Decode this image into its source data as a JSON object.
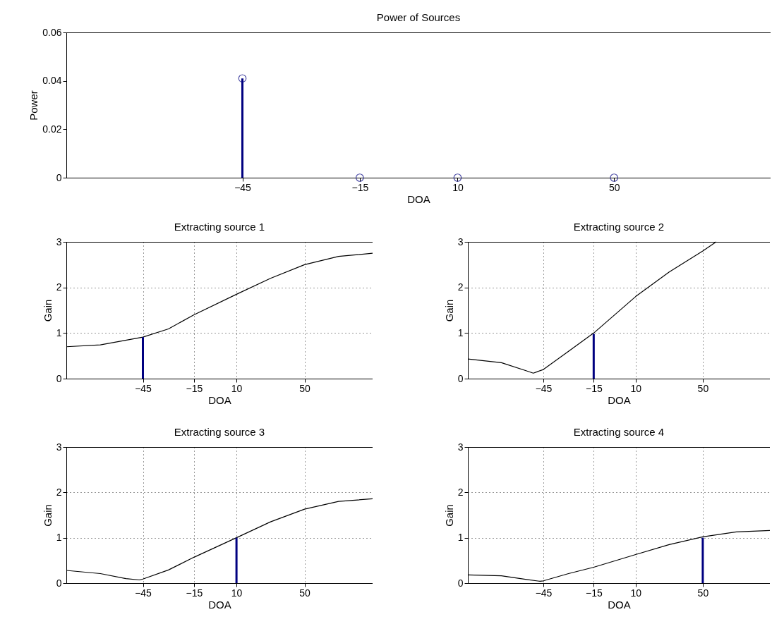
{
  "chart_data": [
    {
      "type": "lollipop",
      "title": "Power of Sources",
      "xlabel": "DOA",
      "ylabel": "Power",
      "x": [
        -45,
        -15,
        10,
        50
      ],
      "series": [
        {
          "color": "#000080",
          "values": [
            0.041,
            0,
            0,
            0
          ]
        }
      ],
      "marker": "circle",
      "xlim": [
        -90,
        90
      ],
      "xticks": [
        -45,
        -15,
        10,
        50
      ],
      "ylim": [
        0,
        0.06
      ],
      "yticks": [
        0,
        0.02,
        0.04,
        0.06
      ]
    },
    {
      "type": "line",
      "title": "Extracting source 1",
      "xlabel": "DOA",
      "ylabel": "Gain",
      "series": [
        {
          "color": "#000000",
          "x": [
            -90,
            -70,
            -45,
            -30,
            -15,
            10,
            30,
            50,
            70,
            90
          ],
          "values": [
            0.7,
            0.74,
            0.91,
            1.09,
            1.4,
            1.85,
            2.2,
            2.5,
            2.68,
            2.75
          ]
        },
        {
          "type": "bar",
          "color": "#000080",
          "x": [
            -45
          ],
          "values": [
            0.91
          ]
        }
      ],
      "grid": true,
      "xlim": [
        -90,
        90
      ],
      "xticks": [
        -45,
        -15,
        10,
        50
      ],
      "ylim": [
        0,
        3
      ],
      "yticks": [
        0,
        1,
        2,
        3
      ]
    },
    {
      "type": "line",
      "title": "Extracting source 2",
      "xlabel": "DOA",
      "ylabel": "Gain",
      "series": [
        {
          "color": "#000000",
          "x": [
            -90,
            -70,
            -55,
            -51,
            -45,
            -30,
            -15,
            10,
            30,
            50,
            58
          ],
          "values": [
            0.43,
            0.35,
            0.17,
            0.12,
            0.2,
            0.6,
            1.0,
            1.8,
            2.34,
            2.8,
            3.0
          ]
        },
        {
          "type": "bar",
          "color": "#000080",
          "x": [
            -15
          ],
          "values": [
            0.98
          ]
        }
      ],
      "grid": true,
      "xlim": [
        -90,
        90
      ],
      "xticks": [
        -45,
        -15,
        10,
        50
      ],
      "ylim": [
        0,
        3
      ],
      "yticks": [
        0,
        1,
        2,
        3
      ]
    },
    {
      "type": "line",
      "title": "Extracting source 3",
      "xlabel": "DOA",
      "ylabel": "Gain",
      "series": [
        {
          "color": "#000000",
          "x": [
            -90,
            -70,
            -55,
            -47,
            -45,
            -30,
            -15,
            10,
            30,
            50,
            70,
            90
          ],
          "values": [
            0.28,
            0.21,
            0.1,
            0.07,
            0.09,
            0.29,
            0.57,
            1.0,
            1.35,
            1.63,
            1.8,
            1.86
          ]
        },
        {
          "type": "bar",
          "color": "#000080",
          "x": [
            10
          ],
          "values": [
            1.0
          ]
        }
      ],
      "grid": true,
      "xlim": [
        -90,
        90
      ],
      "xticks": [
        -45,
        -15,
        10,
        50
      ],
      "ylim": [
        0,
        3
      ],
      "yticks": [
        0,
        1,
        2,
        3
      ]
    },
    {
      "type": "line",
      "title": "Extracting source 4",
      "xlabel": "DOA",
      "ylabel": "Gain",
      "series": [
        {
          "color": "#000000",
          "x": [
            -90,
            -70,
            -55,
            -47,
            -45,
            -30,
            -15,
            10,
            30,
            50,
            70,
            90
          ],
          "values": [
            0.18,
            0.16,
            0.08,
            0.04,
            0.05,
            0.21,
            0.35,
            0.63,
            0.85,
            1.02,
            1.13,
            1.16
          ]
        },
        {
          "type": "bar",
          "color": "#000080",
          "x": [
            50
          ],
          "values": [
            1.0
          ]
        }
      ],
      "grid": true,
      "xlim": [
        -90,
        90
      ],
      "xticks": [
        -45,
        -15,
        10,
        50
      ],
      "ylim": [
        0,
        3
      ],
      "yticks": [
        0,
        1,
        2,
        3
      ]
    }
  ]
}
